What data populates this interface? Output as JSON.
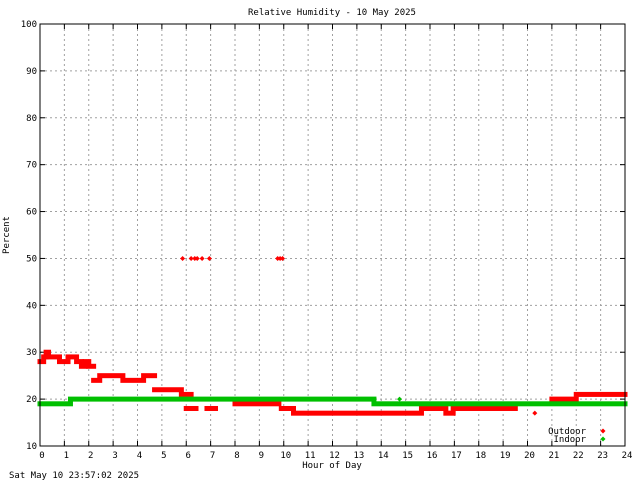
{
  "chart_data": {
    "type": "scatter",
    "title": "Relative Humidity - 10 May 2025",
    "xlabel": "Hour of Day",
    "ylabel": "Percent",
    "xlim": [
      0,
      24
    ],
    "ylim": [
      10,
      100
    ],
    "x_ticks": [
      0,
      1,
      2,
      3,
      4,
      5,
      6,
      7,
      8,
      9,
      10,
      11,
      12,
      13,
      14,
      15,
      16,
      17,
      18,
      19,
      20,
      21,
      22,
      23,
      24
    ],
    "y_ticks": [
      10,
      20,
      30,
      40,
      50,
      60,
      70,
      80,
      90,
      100
    ],
    "grid": true,
    "legend_position": "bottom-right",
    "series": [
      {
        "name": "Outdoor",
        "color": "#ff0000",
        "segments": [
          {
            "x0": 0.0,
            "x1": 0.15,
            "y": 28
          },
          {
            "x0": 0.15,
            "x1": 0.25,
            "y": 29
          },
          {
            "x0": 0.25,
            "x1": 0.35,
            "y": 30
          },
          {
            "x0": 0.35,
            "x1": 0.8,
            "y": 29
          },
          {
            "x0": 0.8,
            "x1": 1.15,
            "y": 28
          },
          {
            "x0": 1.15,
            "x1": 1.5,
            "y": 29
          },
          {
            "x0": 1.5,
            "x1": 1.7,
            "y": 28
          },
          {
            "x0": 1.7,
            "x1": 1.85,
            "y": 27
          },
          {
            "x0": 1.85,
            "x1": 2.0,
            "y": 28
          },
          {
            "x0": 2.0,
            "x1": 2.2,
            "y": 27
          },
          {
            "x0": 2.2,
            "x1": 2.45,
            "y": 24
          },
          {
            "x0": 2.45,
            "x1": 3.4,
            "y": 25
          },
          {
            "x0": 3.4,
            "x1": 4.25,
            "y": 24
          },
          {
            "x0": 4.25,
            "x1": 4.7,
            "y": 25
          },
          {
            "x0": 4.7,
            "x1": 5.8,
            "y": 22
          },
          {
            "x0": 5.8,
            "x1": 6.2,
            "y": 21
          },
          {
            "x0": 6.0,
            "x1": 6.4,
            "y": 18
          },
          {
            "x0": 6.85,
            "x1": 7.2,
            "y": 18
          },
          {
            "x0": 8.0,
            "x1": 9.8,
            "y": 19
          },
          {
            "x0": 9.9,
            "x1": 10.4,
            "y": 18
          },
          {
            "x0": 10.4,
            "x1": 15.65,
            "y": 17
          },
          {
            "x0": 15.65,
            "x1": 16.65,
            "y": 18
          },
          {
            "x0": 16.65,
            "x1": 16.95,
            "y": 17
          },
          {
            "x0": 16.95,
            "x1": 19.5,
            "y": 18
          },
          {
            "x0": 21.0,
            "x1": 22.0,
            "y": 20
          },
          {
            "x0": 22.0,
            "x1": 24.0,
            "y": 21
          }
        ],
        "points": [
          {
            "x": 5.85,
            "y": 50
          },
          {
            "x": 6.2,
            "y": 50
          },
          {
            "x": 6.35,
            "y": 50
          },
          {
            "x": 6.45,
            "y": 50
          },
          {
            "x": 6.65,
            "y": 50
          },
          {
            "x": 6.95,
            "y": 50
          },
          {
            "x": 9.75,
            "y": 50
          },
          {
            "x": 9.85,
            "y": 50
          },
          {
            "x": 9.95,
            "y": 50
          },
          {
            "x": 20.3,
            "y": 17
          }
        ]
      },
      {
        "name": "Indoor",
        "color": "#00c000",
        "segments": [
          {
            "x0": 0.0,
            "x1": 1.25,
            "y": 19
          },
          {
            "x0": 1.25,
            "x1": 13.7,
            "y": 20
          },
          {
            "x0": 13.7,
            "x1": 24.0,
            "y": 19
          }
        ],
        "points": [
          {
            "x": 14.75,
            "y": 20
          }
        ]
      }
    ]
  },
  "timestamp": "Sat May 10 23:57:02 2025"
}
